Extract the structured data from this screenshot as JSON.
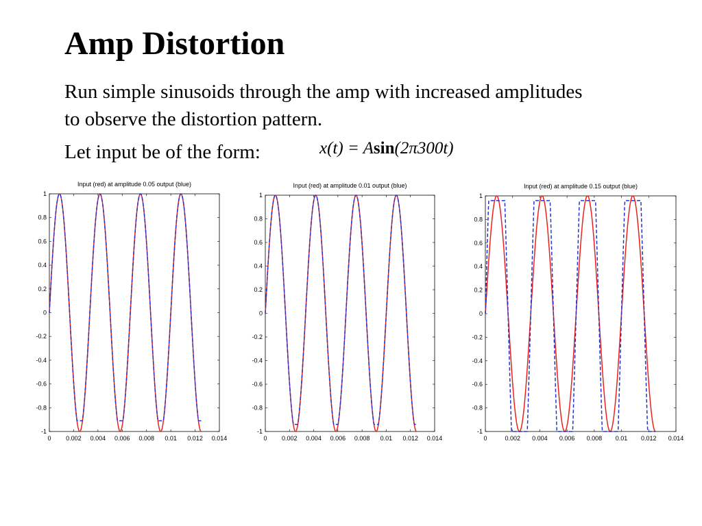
{
  "slide": {
    "title": "Amp Distortion",
    "paragraph": "Run simple sinusoids through the amp with increased amplitudes to observe the distortion pattern.",
    "input_label": "Let input be of the form:",
    "formula": {
      "lhs": "x(t) = ",
      "amp": "A",
      "func": "sin",
      "arg": "(2π300t)"
    }
  },
  "colors": {
    "input": "#e8221b",
    "output": "#2233d6"
  },
  "chart_data": [
    {
      "type": "line",
      "title": "Input (red) at amplitude 0.05 output (blue)",
      "xlim": [
        0,
        0.014
      ],
      "ylim": [
        -1,
        1
      ],
      "xticks": [
        "0",
        "0.002",
        "0.004",
        "0.006",
        "0.008",
        "0.01",
        "0.012",
        "0.014"
      ],
      "yticks": [
        "-1",
        "-0.8",
        "-0.6",
        "-0.4",
        "-0.2",
        "0",
        "0.2",
        "0.4",
        "0.6",
        "0.8",
        "1"
      ],
      "frequency_hz": 300,
      "x_end": 0.0125,
      "series": [
        {
          "name": "Input (red)",
          "amplitude": 1.0,
          "clip_max": 1.0,
          "clip_min": -1.0
        },
        {
          "name": "output (blue)",
          "amplitude": 1.0,
          "clip_max": 1.0,
          "clip_min": -0.91
        }
      ],
      "grid": false
    },
    {
      "type": "line",
      "title": "Input (red) at amplitude 0.01 output (blue)",
      "xlim": [
        0,
        0.014
      ],
      "ylim": [
        -1,
        1
      ],
      "xticks": [
        "0",
        "0.002",
        "0.004",
        "0.006",
        "0.008",
        "0.01",
        "0.012",
        "0.014"
      ],
      "yticks": [
        "-1",
        "-0.8",
        "-0.6",
        "-0.4",
        "-0.2",
        "0",
        "0.2",
        "0.4",
        "0.6",
        "0.8",
        "1"
      ],
      "frequency_hz": 300,
      "x_end": 0.0125,
      "series": [
        {
          "name": "Input (red)",
          "amplitude": 1.0,
          "clip_max": 1.0,
          "clip_min": -1.0
        },
        {
          "name": "output (blue)",
          "amplitude": 1.0,
          "clip_max": 1.0,
          "clip_min": -0.94
        }
      ],
      "grid": false
    },
    {
      "type": "line",
      "title": "Input (red) at amplitude 0.15 output (blue)",
      "xlim": [
        0,
        0.014
      ],
      "ylim": [
        -1,
        1
      ],
      "xticks": [
        "0",
        "0.002",
        "0.004",
        "0.006",
        "0.008",
        "0.01",
        "0.012",
        "0.014"
      ],
      "yticks": [
        "-1",
        "-0.8",
        "-0.6",
        "-0.4",
        "-0.2",
        "0",
        "0.2",
        "0.4",
        "0.6",
        "0.8",
        "1"
      ],
      "frequency_hz": 300,
      "x_end": 0.0125,
      "series": [
        {
          "name": "Input (red)",
          "amplitude": 1.0,
          "clip_max": 1.0,
          "clip_min": -1.0
        },
        {
          "name": "output (blue)",
          "amplitude": 2.2,
          "clip_max": 0.96,
          "clip_min": -1.0
        }
      ],
      "grid": false
    }
  ]
}
